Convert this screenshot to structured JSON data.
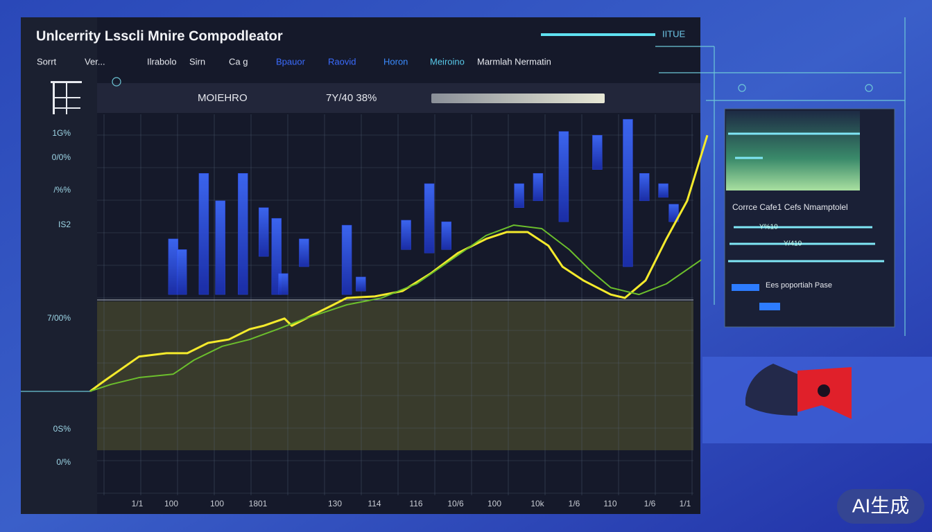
{
  "window": {
    "title": "Unlcerrity Lsscli Mnire  Compodleator",
    "badge": "IITUE"
  },
  "menu": [
    "Sorrt",
    "Ver...",
    "Ilrabolo",
    "Sirn",
    "Ca g",
    "Bpauor",
    "Raovid",
    "Horon",
    "Meiroino",
    "Marmlah Nermatin"
  ],
  "header_strip": {
    "label": "MOIEHRO",
    "stat": "7Y/40 38%"
  },
  "chart_data": {
    "type": "combo",
    "xlim": [
      0,
      101
    ],
    "ylim": [
      0,
      100
    ],
    "y_labels": [
      "1G%",
      "0/0%",
      "/%%",
      "IS2",
      "7/00%",
      "0S%",
      "0/%"
    ],
    "x_labels": [
      "1/1",
      "100",
      "100",
      "1801",
      "130",
      "114",
      "116",
      "10/6",
      "100",
      "10k",
      "1/6",
      "110",
      "1/6",
      "1/1"
    ],
    "bars": {
      "color": "#2b46e0",
      "x": [
        13.6,
        15,
        18.6,
        21.3,
        25,
        28.4,
        30.5,
        31.6,
        35,
        42,
        44.3,
        51.7,
        55.5,
        58.3,
        70.2,
        73.3,
        77.5,
        83,
        88,
        90.7,
        93.8,
        95.5
      ],
      "low": [
        52.7,
        52.7,
        52.7,
        52.7,
        52.7,
        62.7,
        52.7,
        52.7,
        60,
        52.7,
        53.6,
        64.5,
        63.6,
        64.5,
        75.5,
        77.3,
        71.8,
        85.5,
        60,
        77.3,
        78.2,
        71.8
      ],
      "high": [
        67.3,
        64.5,
        84.5,
        77.3,
        84.5,
        75.5,
        72.7,
        58.2,
        67.3,
        70.9,
        57.3,
        72.2,
        81.8,
        71.8,
        81.8,
        84.5,
        95.5,
        94.5,
        98.7,
        84.5,
        81.8,
        76.4
      ]
    },
    "lines": [
      {
        "color": "#f4ea2c",
        "x": [
          0,
          2.3,
          8,
          12.5,
          15.9,
          19.3,
          22.7,
          26.1,
          28.4,
          31.8,
          33,
          36.4,
          39.8,
          42,
          46.6,
          51.1,
          55.7,
          60.2,
          64.8,
          68.2,
          71.6,
          75,
          77.3,
          80.7,
          85.2,
          87.5,
          90.9,
          94.3,
          97.7,
          101
        ],
        "values": [
          27.3,
          30,
          36.4,
          37.3,
          37.3,
          40,
          40.9,
          43.6,
          44.5,
          46.4,
          44.5,
          47.3,
          50,
          51.8,
          52.2,
          53.6,
          58.2,
          63.6,
          67.3,
          69.1,
          69.1,
          65.5,
          60,
          56.4,
          52.7,
          51.8,
          56.4,
          67.3,
          77.3,
          94.5
        ]
      },
      {
        "color": "#6cbf2c",
        "x": [
          0,
          3.4,
          8,
          13.6,
          17,
          21.6,
          26.1,
          30.7,
          35.2,
          38.6,
          42,
          47.7,
          53.4,
          59.1,
          64.8,
          69.3,
          73.9,
          78.4,
          81.8,
          85.2,
          89.8,
          94.3,
          100
        ],
        "values": [
          27.3,
          29.1,
          30.9,
          31.8,
          35.5,
          39.1,
          40.9,
          43.6,
          46.4,
          48.2,
          50,
          51.8,
          55.5,
          61.8,
          68.2,
          70.9,
          70,
          64.5,
          59.1,
          54.5,
          52.7,
          55.5,
          61.8
        ]
      }
    ]
  },
  "side_panel": {
    "heading": "Corrce  Cafe1  Cefs Nmamptolel",
    "slider_1": "Y%10",
    "slider_2": "Y/410",
    "note": "Ees poportiah Pase"
  },
  "watermark": "AI生成"
}
